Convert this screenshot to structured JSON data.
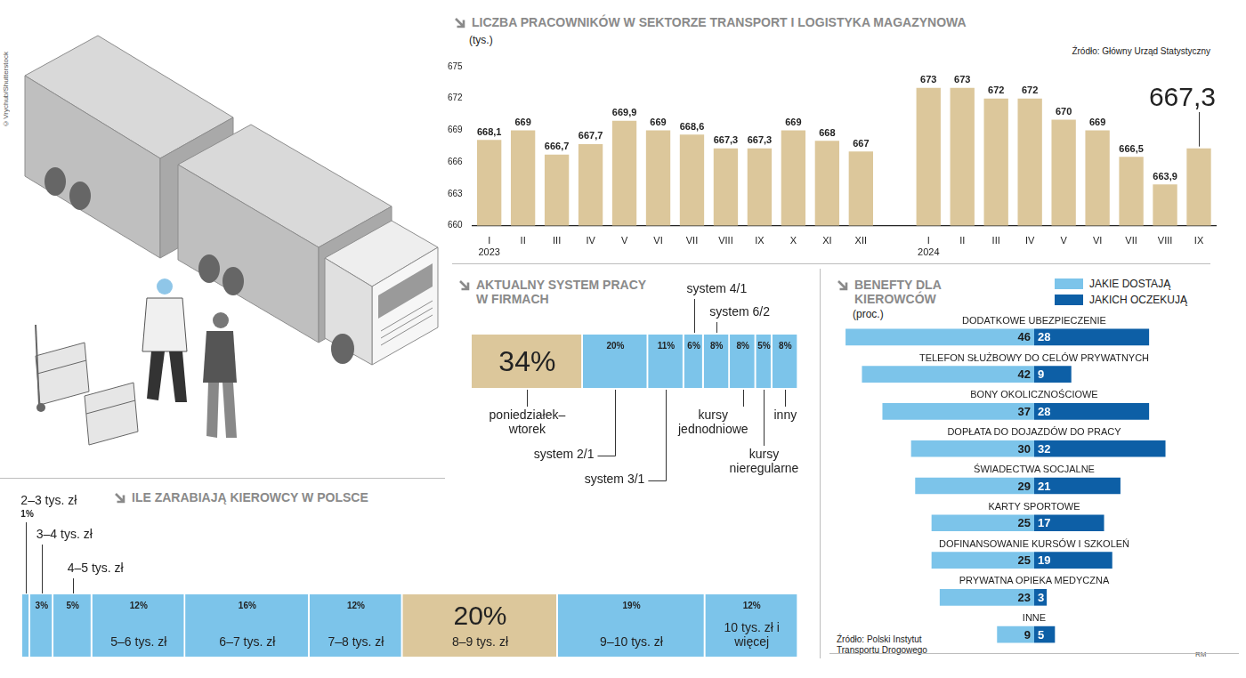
{
  "illustration_credit": "©Vrychub/Shutterstock",
  "author_mark": "RM",
  "chart_data": [
    {
      "type": "bar",
      "title": "LICZBA PRACOWNIKÓW W SEKTORZE TRANSPORT I LOGISTYKA MAGAZYNOWA",
      "y_label": "(tys.)",
      "source": "Źródło: Główny Urząd Statystyczny",
      "categories": [
        "I",
        "II",
        "III",
        "IV",
        "V",
        "VI",
        "VII",
        "VIII",
        "IX",
        "X",
        "XI",
        "XII",
        null,
        "I",
        "II",
        "III",
        "IV",
        "V",
        "VI",
        "VII",
        "VIII",
        "IX"
      ],
      "years": [
        "2023",
        null,
        null,
        null,
        null,
        null,
        null,
        null,
        null,
        null,
        null,
        null,
        null,
        "2024",
        null,
        null,
        null,
        null,
        null,
        null,
        null,
        null
      ],
      "values": [
        668.1,
        669,
        666.7,
        667.7,
        669.9,
        669,
        668.6,
        667.3,
        667.3,
        669,
        668,
        667,
        null,
        673,
        673,
        672,
        672,
        670,
        669,
        666.5,
        663.9,
        667.3
      ],
      "value_labels": [
        "668,1",
        "669",
        "666,7",
        "667,7",
        "669,9",
        "669",
        "668,6",
        "667,3",
        "667,3",
        "669",
        "668",
        "667",
        null,
        "673",
        "673",
        "672",
        "672",
        "670",
        "669",
        "666,5",
        "663,9",
        "667,3"
      ],
      "color": "#dcc79b",
      "ylim": [
        660,
        675
      ],
      "yticks": [
        660,
        663,
        666,
        669,
        672,
        675
      ],
      "grid": false,
      "data_labels": true
    },
    {
      "type": "bar",
      "orientation": "horizontal",
      "stacked": true,
      "title": "AKTUALNY SYSTEM PRACY W FIRMACH",
      "categories": [
        "poniedziałek–wtorek",
        "system 2/1",
        "system 3/1",
        "system 4/1",
        "system 6/2",
        "kursy jednodniowe",
        "kursy nieregularne",
        "inny"
      ],
      "values": [
        34,
        20,
        11,
        6,
        8,
        8,
        5,
        8
      ],
      "value_labels": [
        "34%",
        "20%",
        "11%",
        "6%",
        "8%",
        "8%",
        "5%",
        "8%"
      ],
      "colors": [
        "#dcc79b",
        "#7cc4ea",
        "#7cc4ea",
        "#7cc4ea",
        "#7cc4ea",
        "#7cc4ea",
        "#7cc4ea",
        "#7cc4ea"
      ],
      "xlim": [
        0,
        100
      ],
      "tick_labels": false,
      "grid": false,
      "data_labels": true
    },
    {
      "type": "bar",
      "orientation": "horizontal",
      "title": "BENEFTY DLA KIEROWCÓW",
      "subtitle": "(proc.)",
      "source": "Źródło: Polski Instytut Transportu Drogowego",
      "categories": [
        "DODATKOWE UBEZPIECZENIE",
        "TELEFON SŁUŻBOWY DO CELÓW PRYWATNYCH",
        "BONY OKOLICZNOŚCIOWE",
        "DOPŁATA DO DOJAZDÓW DO PRACY",
        "ŚWIADECTWA SOCJALNE",
        "KARTY SPORTOWE",
        "DOFINANSOWANIE KURSÓW I SZKOLEŃ",
        "PRYWATNA OPIEKA MEDYCZNA",
        "INNE"
      ],
      "series": [
        {
          "name": "JAKIE DOSTAJĄ",
          "color": "#7cc4ea",
          "values": [
            46,
            42,
            37,
            30,
            29,
            25,
            25,
            23,
            9
          ]
        },
        {
          "name": "JAKICH OCZEKUJĄ",
          "color": "#0d5fa6",
          "values": [
            28,
            9,
            28,
            32,
            21,
            17,
            19,
            3,
            5
          ]
        }
      ],
      "xlim": [
        0,
        50
      ],
      "tick_labels": false,
      "grid": false,
      "legend": "top-right",
      "data_labels": true
    },
    {
      "type": "bar",
      "orientation": "horizontal",
      "stacked": true,
      "title": "ILE ZARABIAJĄ KIEROWCY W POLSCE",
      "categories": [
        "2–3 tys. zł",
        "3–4 tys. zł",
        "4–5 tys. zł",
        "5–6 tys. zł",
        "6–7 tys. zł",
        "7–8 tys. zł",
        "8–9 tys. zł",
        "9–10 tys. zł",
        "10 tys. zł i więcej"
      ],
      "values": [
        1,
        3,
        5,
        12,
        16,
        12,
        20,
        19,
        12
      ],
      "value_labels": [
        "1%",
        "3%",
        "5%",
        "12%",
        "16%",
        "12%",
        "20%",
        "19%",
        "12%"
      ],
      "colors": [
        "#7cc4ea",
        "#7cc4ea",
        "#7cc4ea",
        "#7cc4ea",
        "#7cc4ea",
        "#7cc4ea",
        "#dcc79b",
        "#7cc4ea",
        "#7cc4ea"
      ],
      "xlim": [
        0,
        100
      ],
      "tick_labels": false,
      "grid": false,
      "data_labels": true
    }
  ]
}
